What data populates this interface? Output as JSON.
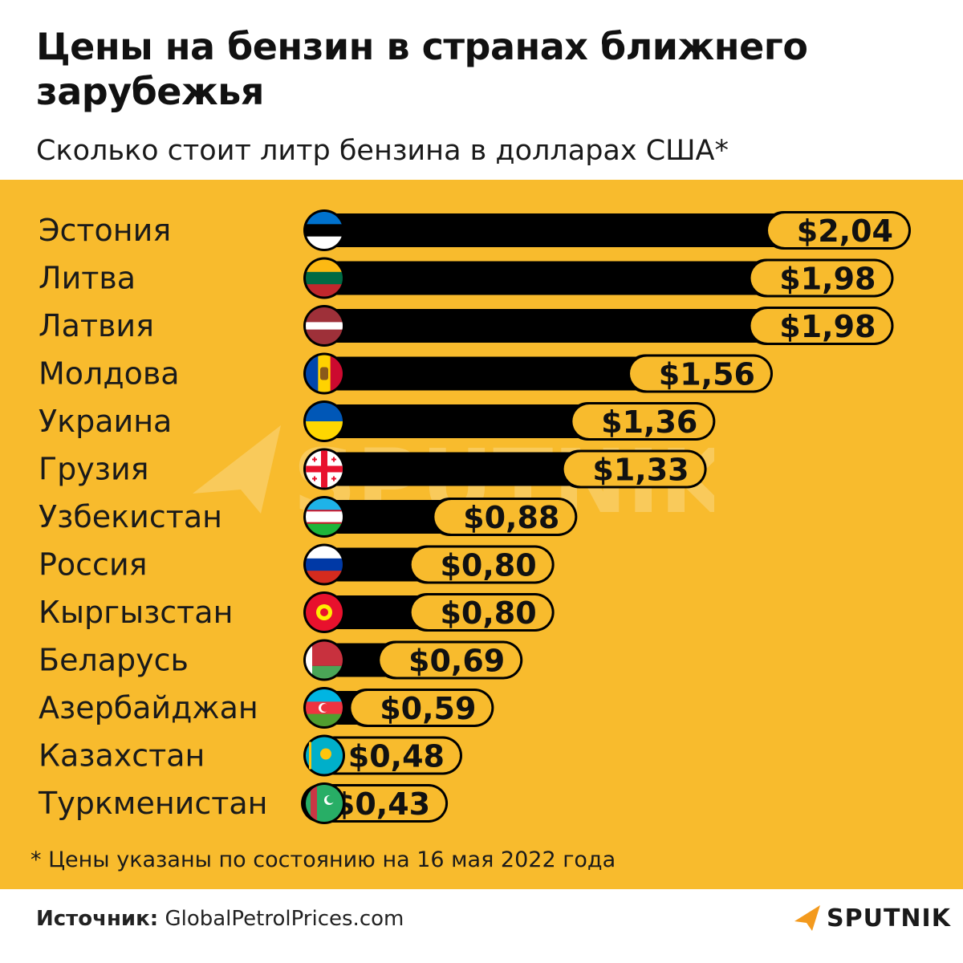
{
  "header": {
    "title": "Цены на бензин в странах ближнего зарубежья",
    "subtitle": "Сколько стоит литр бензина в долларах США*"
  },
  "footnote": "* Цены указаны по состоянию на 16 мая 2022 года",
  "source": {
    "label": "Источник:",
    "value": "GlobalPetrolPrices.com"
  },
  "brand": {
    "name": "SPUTNIK",
    "watermark": "SPUTNIK"
  },
  "colors": {
    "panel": "#f8bb2d",
    "bar": "#000000",
    "label_bg": "#f8bb2d",
    "accent": "#f39a1e"
  },
  "chart_data": {
    "type": "bar",
    "orientation": "horizontal",
    "title": "Цены на бензин в странах ближнего зарубежья",
    "subtitle": "Сколько стоит литр бензина в долларах США*",
    "unit": "USD per liter",
    "categories": [
      "Эстония",
      "Литва",
      "Латвия",
      "Молдова",
      "Украина",
      "Грузия",
      "Узбекистан",
      "Россия",
      "Кыргызстан",
      "Беларусь",
      "Азербайджан",
      "Казахстан",
      "Туркменистан"
    ],
    "values": [
      2.04,
      1.98,
      1.98,
      1.56,
      1.36,
      1.33,
      0.88,
      0.8,
      0.8,
      0.69,
      0.59,
      0.48,
      0.43
    ],
    "value_labels": [
      "$2,04",
      "$1,98",
      "$1,98",
      "$1,56",
      "$1,36",
      "$1,33",
      "$0,88",
      "$0,80",
      "$0,80",
      "$0,69",
      "$0,59",
      "$0,48",
      "$0,43"
    ],
    "flags": [
      "estonia-flag-icon",
      "lithuania-flag-icon",
      "latvia-flag-icon",
      "moldova-flag-icon",
      "ukraine-flag-icon",
      "georgia-flag-icon",
      "uzbekistan-flag-icon",
      "russia-flag-icon",
      "kyrgyzstan-flag-icon",
      "belarus-flag-icon",
      "azerbaijan-flag-icon",
      "kazakhstan-flag-icon",
      "turkmenistan-flag-icon"
    ],
    "xlim": [
      0,
      2.04
    ],
    "grid": false,
    "legend": "none"
  }
}
